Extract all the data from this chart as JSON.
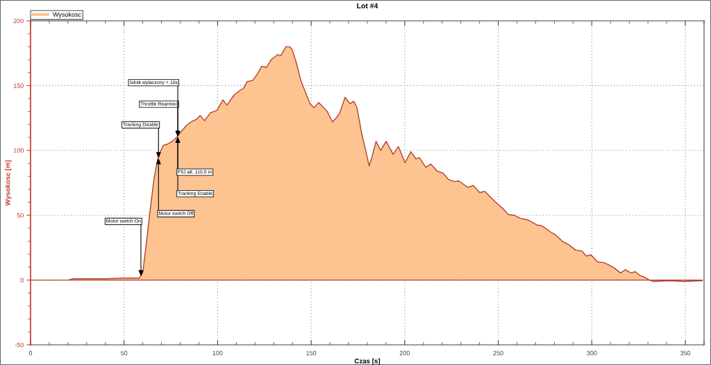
{
  "chart_data": {
    "type": "area",
    "title": "Lot #4",
    "xlabel": "Czas [s]",
    "ylabel": "Wysokosc [m]",
    "legend": "top left",
    "grid": true,
    "xlim": [
      0,
      360
    ],
    "ylim": [
      -50,
      200
    ],
    "xticks": [
      0,
      {
        "value": 10,
        "label": null
      },
      {
        "value": 20,
        "label": null
      },
      {
        "value": 30,
        "label": null
      },
      {
        "value": 40,
        "label": null
      },
      50,
      {
        "value": 60,
        "label": null
      },
      {
        "value": 70,
        "label": null
      },
      {
        "value": 80,
        "label": null
      },
      {
        "value": 90,
        "label": null
      },
      100,
      {
        "value": 110,
        "label": null
      },
      {
        "value": 120,
        "label": null
      },
      {
        "value": 130,
        "label": null
      },
      {
        "value": 140,
        "label": null
      },
      150,
      {
        "value": 160,
        "label": null
      },
      {
        "value": 170,
        "label": null
      },
      {
        "value": 180,
        "label": null
      },
      {
        "value": 190,
        "label": null
      },
      200,
      {
        "value": 210,
        "label": null
      },
      {
        "value": 220,
        "label": null
      },
      {
        "value": 230,
        "label": null
      },
      {
        "value": 240,
        "label": null
      },
      250,
      {
        "value": 260,
        "label": null
      },
      {
        "value": 270,
        "label": null
      },
      {
        "value": 280,
        "label": null
      },
      {
        "value": 290,
        "label": null
      },
      300,
      {
        "value": 310,
        "label": null
      },
      {
        "value": 320,
        "label": null
      },
      {
        "value": 330,
        "label": null
      },
      {
        "value": 340,
        "label": null
      },
      350,
      {
        "value": 360,
        "label": null
      }
    ],
    "yticks": [
      -50,
      {
        "value": -40,
        "label": null
      },
      {
        "value": -30,
        "label": null
      },
      {
        "value": -20,
        "label": null
      },
      {
        "value": -10,
        "label": null
      },
      0,
      {
        "value": 10,
        "label": null
      },
      {
        "value": 20,
        "label": null
      },
      {
        "value": 30,
        "label": null
      },
      {
        "value": 40,
        "label": null
      },
      50,
      {
        "value": 60,
        "label": null
      },
      {
        "value": 70,
        "label": null
      },
      {
        "value": 80,
        "label": null
      },
      {
        "value": 90,
        "label": null
      },
      100,
      {
        "value": 110,
        "label": null
      },
      {
        "value": 120,
        "label": null
      },
      {
        "value": 130,
        "label": null
      },
      {
        "value": 140,
        "label": null
      },
      150,
      {
        "value": 160,
        "label": null
      },
      {
        "value": 170,
        "label": null
      },
      {
        "value": 180,
        "label": null
      },
      {
        "value": 190,
        "label": null
      },
      200
    ],
    "x": [
      0,
      10,
      20,
      23,
      40,
      50,
      58,
      59.3,
      60,
      62,
      64,
      66,
      67.9,
      69.1,
      71,
      73.4,
      75.8,
      78.3,
      80.8,
      83.2,
      85.7,
      88.7,
      90.6,
      93,
      96.1,
      99.7,
      102.8,
      105,
      108.9,
      112.6,
      113.9,
      115.7,
      118.8,
      121.2,
      123.6,
      126.1,
      128.6,
      132.2,
      133.7,
      136.5,
      138.4,
      139.8,
      142,
      144.5,
      146.9,
      149.4,
      151.6,
      154,
      156.7,
      158.6,
      161.4,
      163.9,
      165.3,
      168.1,
      170.8,
      172.7,
      174.5,
      177,
      178.8,
      181,
      182.5,
      184.7,
      187.1,
      190.1,
      193.8,
      196.6,
      200.2,
      203.3,
      206,
      207.8,
      211.3,
      214,
      217.4,
      220.5,
      223.5,
      226.6,
      229,
      233.7,
      236.6,
      240.1,
      242.8,
      248.6,
      252.3,
      255.4,
      258.5,
      262.1,
      265.8,
      270.7,
      273.2,
      278.1,
      280.5,
      284.2,
      287.9,
      291.5,
      294.6,
      297.1,
      299.5,
      303.2,
      306.3,
      308.7,
      311.8,
      315.4,
      317.9,
      321,
      323.2,
      325.8,
      327.7,
      330.8,
      332.6,
      341.8,
      349.1,
      359
    ],
    "series": [
      {
        "name": "Wysokosc",
        "color": "#fdc390",
        "values": [
          0,
          0,
          0,
          1,
          1,
          1.5,
          1.5,
          4,
          6,
          30,
          55,
          78,
          93,
          98,
          104,
          105,
          107,
          110.5,
          115,
          119,
          122,
          124,
          127,
          123,
          129,
          131,
          139,
          135,
          143,
          147,
          148,
          153,
          154,
          159,
          165,
          164,
          170,
          174,
          173,
          180,
          180,
          178,
          168,
          154,
          145,
          136,
          133,
          137,
          133,
          130,
          122,
          126,
          129,
          141,
          136,
          138,
          133,
          113,
          102,
          88,
          95,
          107,
          100,
          107,
          97,
          103,
          90.5,
          99,
          93.5,
          94.5,
          87,
          89.5,
          84,
          82.5,
          77.5,
          76,
          76.5,
          71.5,
          73,
          67.5,
          68.5,
          60,
          55.5,
          50.5,
          50,
          47.5,
          46.5,
          42.5,
          42,
          37,
          35,
          30,
          27,
          23,
          22.5,
          18.5,
          19.5,
          14,
          13.5,
          12,
          9.5,
          5.5,
          8,
          5.5,
          6.5,
          3.5,
          2.5,
          0,
          -1,
          -0.5,
          -1,
          -0.5
        ]
      }
    ],
    "annotations": [
      {
        "text": "Motor switch On",
        "x": 59,
        "y": 3
      },
      {
        "text": "Tracking Disable",
        "x": 68.4,
        "y": 94
      },
      {
        "text": "Motor switch Off",
        "x": 68.4,
        "y": 94
      },
      {
        "text": "Silnik wylaczony + 10s",
        "x": 78.7,
        "y": 110.5
      },
      {
        "text": "Throttle Rearmed",
        "x": 78.7,
        "y": 110.5
      },
      {
        "text": "F5J alt. 110.5 m",
        "x": 78.7,
        "y": 110.5
      },
      {
        "text": "Tracking Enable",
        "x": 78.7,
        "y": 110.5
      }
    ]
  }
}
